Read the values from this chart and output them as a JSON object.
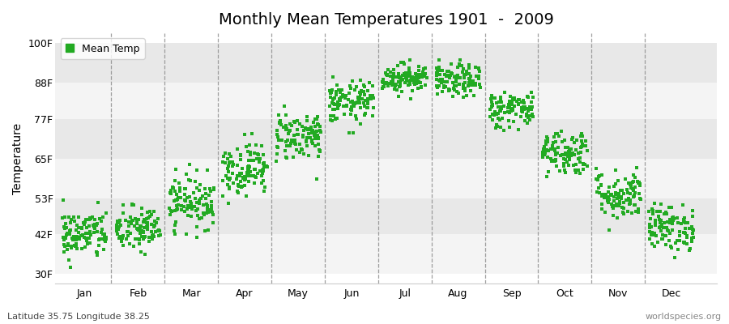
{
  "title": "Monthly Mean Temperatures 1901  -  2009",
  "ylabel": "Temperature",
  "xlabel_bottom_left": "Latitude 35.75 Longitude 38.25",
  "xlabel_bottom_right": "worldspecies.org",
  "ytick_labels": [
    "30F",
    "42F",
    "53F",
    "65F",
    "77F",
    "88F",
    "100F"
  ],
  "ytick_values": [
    30,
    42,
    53,
    65,
    77,
    88,
    100
  ],
  "ylim": [
    27,
    103
  ],
  "months": [
    "Jan",
    "Feb",
    "Mar",
    "Apr",
    "May",
    "Jun",
    "Jul",
    "Aug",
    "Sep",
    "Oct",
    "Nov",
    "Dec"
  ],
  "month_centers": [
    1.0,
    2.0,
    3.0,
    4.0,
    5.0,
    6.0,
    7.0,
    8.0,
    9.0,
    10.0,
    11.0,
    12.0
  ],
  "dot_color": "#22aa22",
  "bg_color": "#ffffff",
  "plot_bg_color": "#ffffff",
  "band_color_dark": "#e8e8e8",
  "band_color_light": "#f4f4f4",
  "legend_label": "Mean Temp",
  "title_fontsize": 14,
  "axis_fontsize": 10,
  "tick_fontsize": 9,
  "n_years": 109,
  "mean_temps_F": [
    42.0,
    43.5,
    52.0,
    62.0,
    72.0,
    82.0,
    89.5,
    88.5,
    80.0,
    67.0,
    54.0,
    44.0
  ],
  "std_temps_F": [
    3.8,
    3.5,
    4.0,
    4.0,
    3.8,
    3.2,
    2.2,
    2.5,
    2.8,
    3.5,
    3.8,
    3.5
  ],
  "seed": 42,
  "vline_positions": [
    1.5,
    2.5,
    3.5,
    4.5,
    5.5,
    6.5,
    7.5,
    8.5,
    9.5,
    10.5,
    11.5
  ]
}
